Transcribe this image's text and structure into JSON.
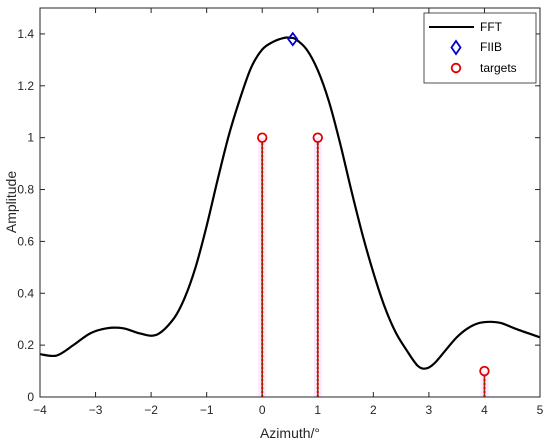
{
  "chart_data": {
    "type": "line",
    "title": "",
    "xlabel": "Azimuth/°",
    "ylabel": "Amplitude",
    "xlim": [
      -4,
      5
    ],
    "ylim": [
      0,
      1.5
    ],
    "x_ticks": [
      -4,
      -3,
      -2,
      -1,
      0,
      1,
      2,
      3,
      4,
      5
    ],
    "y_ticks": [
      0,
      0.2,
      0.4,
      0.6,
      0.8,
      1,
      1.2,
      1.4
    ],
    "grid": false,
    "legend_position": "top-right",
    "series": [
      {
        "name": "FFT",
        "style": "solid-line",
        "color": "#000000",
        "x": [
          -4,
          -3.7,
          -3.4,
          -3.1,
          -2.8,
          -2.5,
          -2.2,
          -1.9,
          -1.6,
          -1.4,
          -1.2,
          -1.0,
          -0.8,
          -0.6,
          -0.4,
          -0.2,
          0,
          0.2,
          0.4,
          0.5,
          0.6,
          0.8,
          1.0,
          1.2,
          1.4,
          1.6,
          1.8,
          2.0,
          2.2,
          2.4,
          2.6,
          2.8,
          2.95,
          3.1,
          3.3,
          3.5,
          3.7,
          3.9,
          4.1,
          4.3,
          4.6,
          5.0
        ],
        "y": [
          0.165,
          0.16,
          0.2,
          0.245,
          0.265,
          0.265,
          0.245,
          0.24,
          0.3,
          0.38,
          0.5,
          0.66,
          0.84,
          1.01,
          1.15,
          1.27,
          1.34,
          1.37,
          1.385,
          1.385,
          1.38,
          1.34,
          1.26,
          1.14,
          0.98,
          0.8,
          0.63,
          0.48,
          0.35,
          0.25,
          0.18,
          0.12,
          0.11,
          0.13,
          0.18,
          0.23,
          0.265,
          0.285,
          0.29,
          0.285,
          0.26,
          0.23
        ]
      },
      {
        "name": "FIIB",
        "style": "diamond-marker",
        "color": "#0000cc",
        "x": [
          0.55
        ],
        "y": [
          1.38
        ]
      },
      {
        "name": "targets",
        "style": "circle-marker-stem",
        "color": "#e00000",
        "x": [
          0,
          1,
          4
        ],
        "y": [
          1,
          1,
          0.1
        ]
      }
    ]
  },
  "legend": {
    "items": [
      {
        "label": "FFT"
      },
      {
        "label": "FIIB"
      },
      {
        "label": "targets"
      }
    ]
  }
}
